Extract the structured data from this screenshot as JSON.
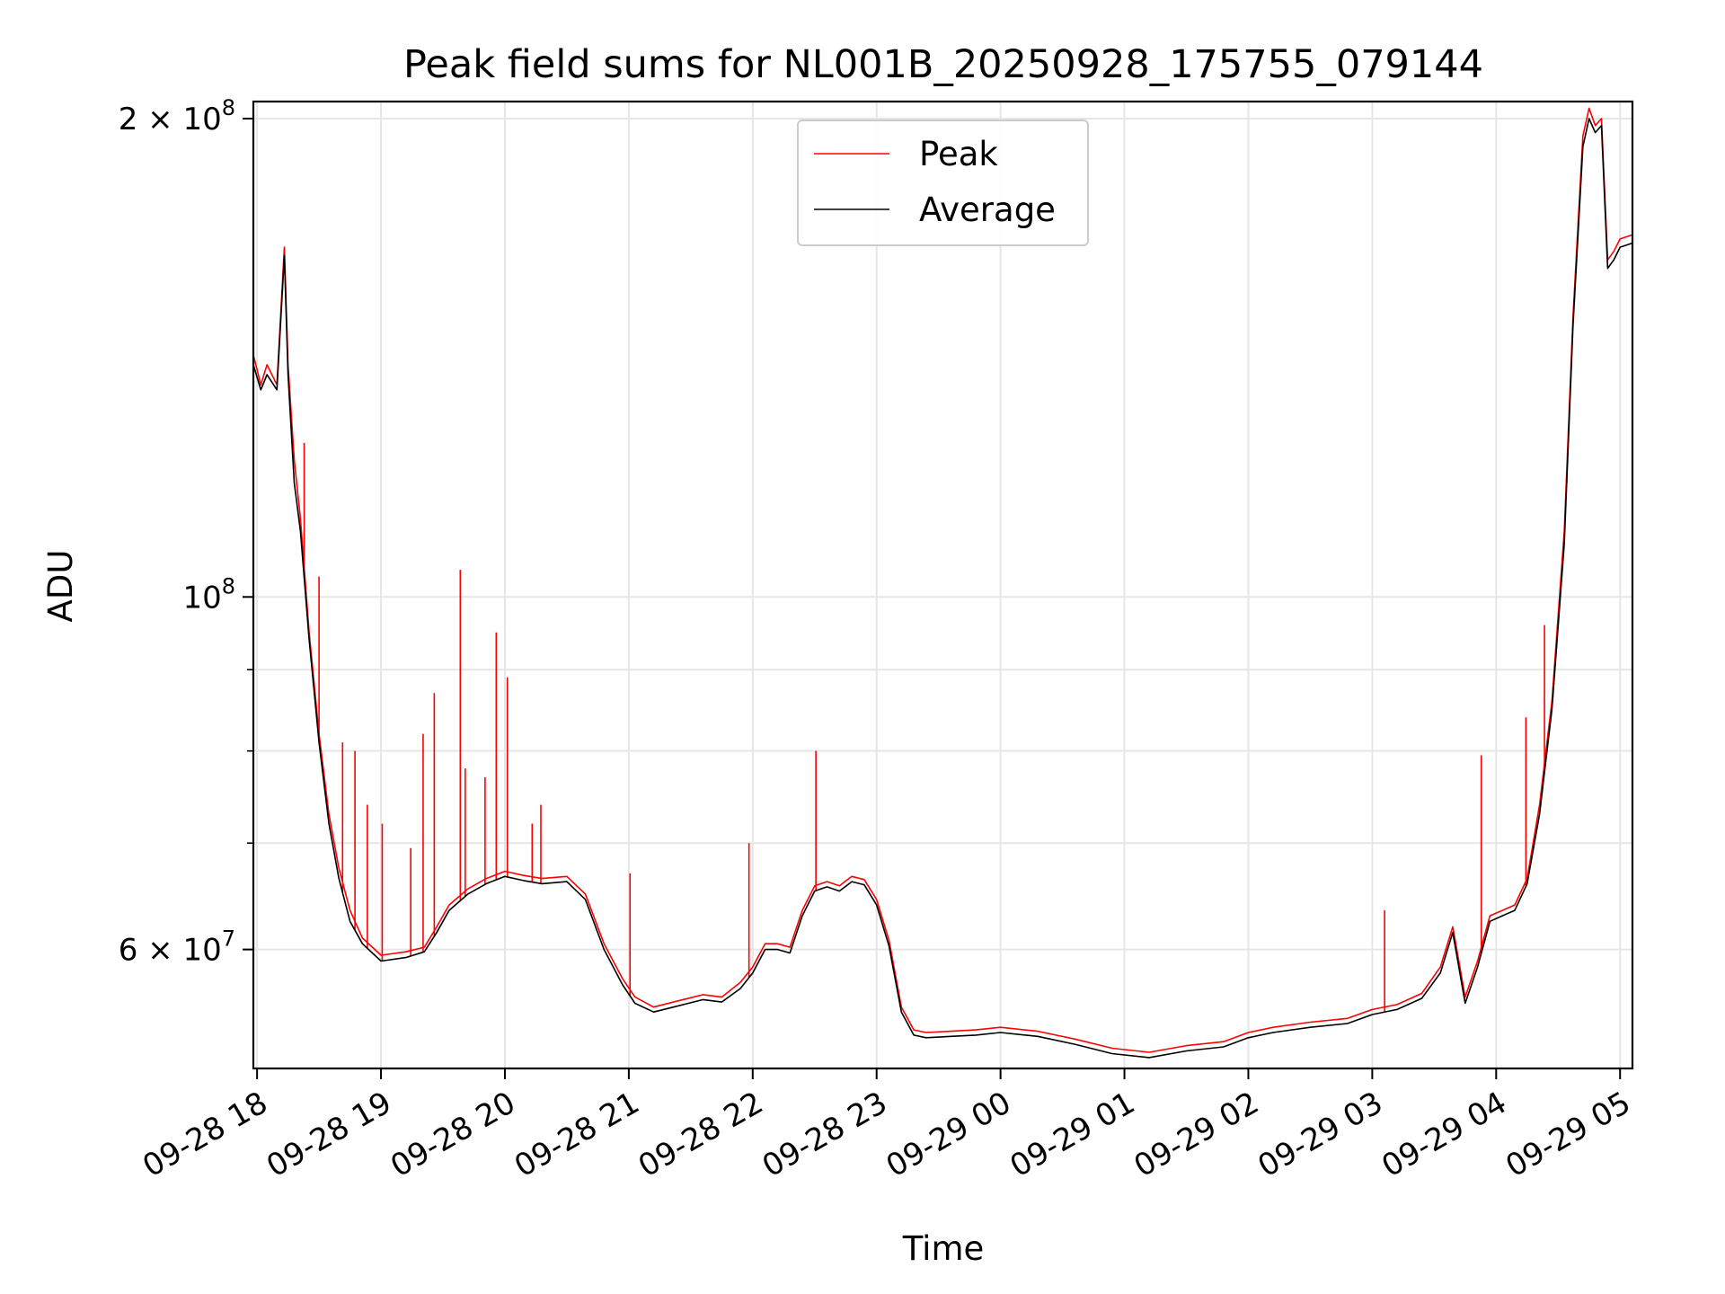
{
  "chart_data": {
    "type": "line",
    "title": "Peak field sums for NL001B_20250928_175755_079144",
    "xlabel": "Time",
    "ylabel": "ADU",
    "yscale": "log",
    "ylim": [
      50500000,
      205000000
    ],
    "xlim_hours": [
      17.97,
      29.1
    ],
    "grid": true,
    "legend_position": "upper center",
    "x_ticks": [
      {
        "hour": 18,
        "label": "09-28 18"
      },
      {
        "hour": 19,
        "label": "09-28 19"
      },
      {
        "hour": 20,
        "label": "09-28 20"
      },
      {
        "hour": 21,
        "label": "09-28 21"
      },
      {
        "hour": 22,
        "label": "09-28 22"
      },
      {
        "hour": 23,
        "label": "09-28 23"
      },
      {
        "hour": 24,
        "label": "09-29 00"
      },
      {
        "hour": 25,
        "label": "09-29 01"
      },
      {
        "hour": 26,
        "label": "09-29 02"
      },
      {
        "hour": 27,
        "label": "09-29 03"
      },
      {
        "hour": 28,
        "label": "09-29 04"
      },
      {
        "hour": 29,
        "label": "09-29 05"
      }
    ],
    "y_ticks": [
      {
        "value": 60000000,
        "base": "6 × 10",
        "exp": "7"
      },
      {
        "value": 100000000,
        "base": "10",
        "exp": "8"
      },
      {
        "value": 200000000,
        "base": "2 × 10",
        "exp": "8"
      }
    ],
    "y_minor_ticks": [
      50000000,
      70000000,
      80000000,
      90000000
    ],
    "series": [
      {
        "name": "Peak",
        "color": "#ff0000",
        "x": [
          17.97,
          18.03,
          18.08,
          18.16,
          18.22,
          18.25,
          18.3,
          18.35,
          18.42,
          18.5,
          18.58,
          18.66,
          18.75,
          18.85,
          19.0,
          19.2,
          19.35,
          19.45,
          19.55,
          19.7,
          19.85,
          20.0,
          20.15,
          20.3,
          20.5,
          20.65,
          20.8,
          20.95,
          21.05,
          21.2,
          21.4,
          21.6,
          21.75,
          21.9,
          22.0,
          22.1,
          22.2,
          22.3,
          22.4,
          22.5,
          22.6,
          22.7,
          22.8,
          22.9,
          23.0,
          23.1,
          23.2,
          23.3,
          23.4,
          23.6,
          23.8,
          24.0,
          24.3,
          24.6,
          24.9,
          25.2,
          25.5,
          25.8,
          26.0,
          26.2,
          26.5,
          26.8,
          27.0,
          27.2,
          27.4,
          27.55,
          27.65,
          27.75,
          27.85,
          27.95,
          28.05,
          28.15,
          28.25,
          28.35,
          28.45,
          28.55,
          28.62,
          28.7,
          28.75,
          28.8,
          28.85,
          28.9,
          28.95,
          29.0,
          29.1
        ],
        "y": [
          142000000,
          136000000,
          140000000,
          136000000,
          166000000,
          140000000,
          122000000,
          112000000,
          95000000,
          82000000,
          73000000,
          67500000,
          63500000,
          61000000,
          59500000,
          59800000,
          60200000,
          62000000,
          64000000,
          65500000,
          66500000,
          67200000,
          66800000,
          66500000,
          66700000,
          65000000,
          60500000,
          57500000,
          56000000,
          55200000,
          55700000,
          56200000,
          56000000,
          57200000,
          58500000,
          60500000,
          60500000,
          60200000,
          63500000,
          65800000,
          66200000,
          65800000,
          66700000,
          66400000,
          64500000,
          60800000,
          55200000,
          53400000,
          53200000,
          53300000,
          53400000,
          53600000,
          53300000,
          52700000,
          52000000,
          51700000,
          52200000,
          52500000,
          53200000,
          53600000,
          54000000,
          54300000,
          55000000,
          55400000,
          56300000,
          58500000,
          62000000,
          56000000,
          59000000,
          63000000,
          63500000,
          64000000,
          66500000,
          74000000,
          86000000,
          110000000,
          150000000,
          195000000,
          203000000,
          198000000,
          200000000,
          163000000,
          165000000,
          168000000,
          169000000
        ],
        "spikes": [
          {
            "x": 18.38,
            "y": 125000000
          },
          {
            "x": 18.5,
            "y": 103000000
          },
          {
            "x": 18.69,
            "y": 81000000
          },
          {
            "x": 18.79,
            "y": 80000000
          },
          {
            "x": 18.89,
            "y": 74000000
          },
          {
            "x": 19.01,
            "y": 72000000
          },
          {
            "x": 19.24,
            "y": 69500000
          },
          {
            "x": 19.34,
            "y": 82000000
          },
          {
            "x": 19.43,
            "y": 87000000
          },
          {
            "x": 19.64,
            "y": 104000000
          },
          {
            "x": 19.68,
            "y": 78000000
          },
          {
            "x": 19.84,
            "y": 77000000
          },
          {
            "x": 19.93,
            "y": 95000000
          },
          {
            "x": 20.02,
            "y": 89000000
          },
          {
            "x": 20.22,
            "y": 72000000
          },
          {
            "x": 20.29,
            "y": 74000000
          },
          {
            "x": 21.01,
            "y": 67000000
          },
          {
            "x": 21.97,
            "y": 70000000
          },
          {
            "x": 22.51,
            "y": 80000000
          },
          {
            "x": 27.1,
            "y": 63500000
          },
          {
            "x": 27.88,
            "y": 79500000
          },
          {
            "x": 28.24,
            "y": 84000000
          },
          {
            "x": 28.39,
            "y": 96000000
          },
          {
            "x": 28.57,
            "y": 118000000
          }
        ]
      },
      {
        "name": "Average",
        "color": "#000000",
        "x": [
          17.97,
          18.03,
          18.08,
          18.16,
          18.22,
          18.25,
          18.3,
          18.35,
          18.42,
          18.5,
          18.58,
          18.66,
          18.75,
          18.85,
          19.0,
          19.2,
          19.35,
          19.45,
          19.55,
          19.7,
          19.85,
          20.0,
          20.15,
          20.3,
          20.5,
          20.65,
          20.8,
          20.95,
          21.05,
          21.2,
          21.4,
          21.6,
          21.75,
          21.9,
          22.0,
          22.1,
          22.2,
          22.3,
          22.4,
          22.5,
          22.6,
          22.7,
          22.8,
          22.9,
          23.0,
          23.1,
          23.2,
          23.3,
          23.4,
          23.6,
          23.8,
          24.0,
          24.3,
          24.6,
          24.9,
          25.2,
          25.5,
          25.8,
          26.0,
          26.2,
          26.5,
          26.8,
          27.0,
          27.2,
          27.4,
          27.55,
          27.65,
          27.75,
          27.85,
          27.95,
          28.05,
          28.15,
          28.25,
          28.35,
          28.45,
          28.55,
          28.62,
          28.7,
          28.75,
          28.8,
          28.85,
          28.9,
          28.95,
          29.0,
          29.1
        ],
        "y": [
          140000000,
          135000000,
          138000000,
          135000000,
          164000000,
          138000000,
          118000000,
          110000000,
          94000000,
          81000000,
          72000000,
          66500000,
          62500000,
          60500000,
          59000000,
          59300000,
          59800000,
          61500000,
          63500000,
          65000000,
          66000000,
          66700000,
          66300000,
          66000000,
          66200000,
          64500000,
          60000000,
          57000000,
          55500000,
          54800000,
          55300000,
          55800000,
          55600000,
          56700000,
          58000000,
          60000000,
          60000000,
          59700000,
          63000000,
          65300000,
          65700000,
          65300000,
          66200000,
          65900000,
          64000000,
          60300000,
          54800000,
          53000000,
          52800000,
          52900000,
          53000000,
          53200000,
          52900000,
          52300000,
          51600000,
          51300000,
          51800000,
          52100000,
          52800000,
          53200000,
          53600000,
          53900000,
          54600000,
          55000000,
          55900000,
          58000000,
          61500000,
          55500000,
          58500000,
          62500000,
          63000000,
          63500000,
          66000000,
          73000000,
          85000000,
          108000000,
          148000000,
          192000000,
          200000000,
          196000000,
          198000000,
          161000000,
          163000000,
          166000000,
          167000000
        ]
      }
    ]
  }
}
